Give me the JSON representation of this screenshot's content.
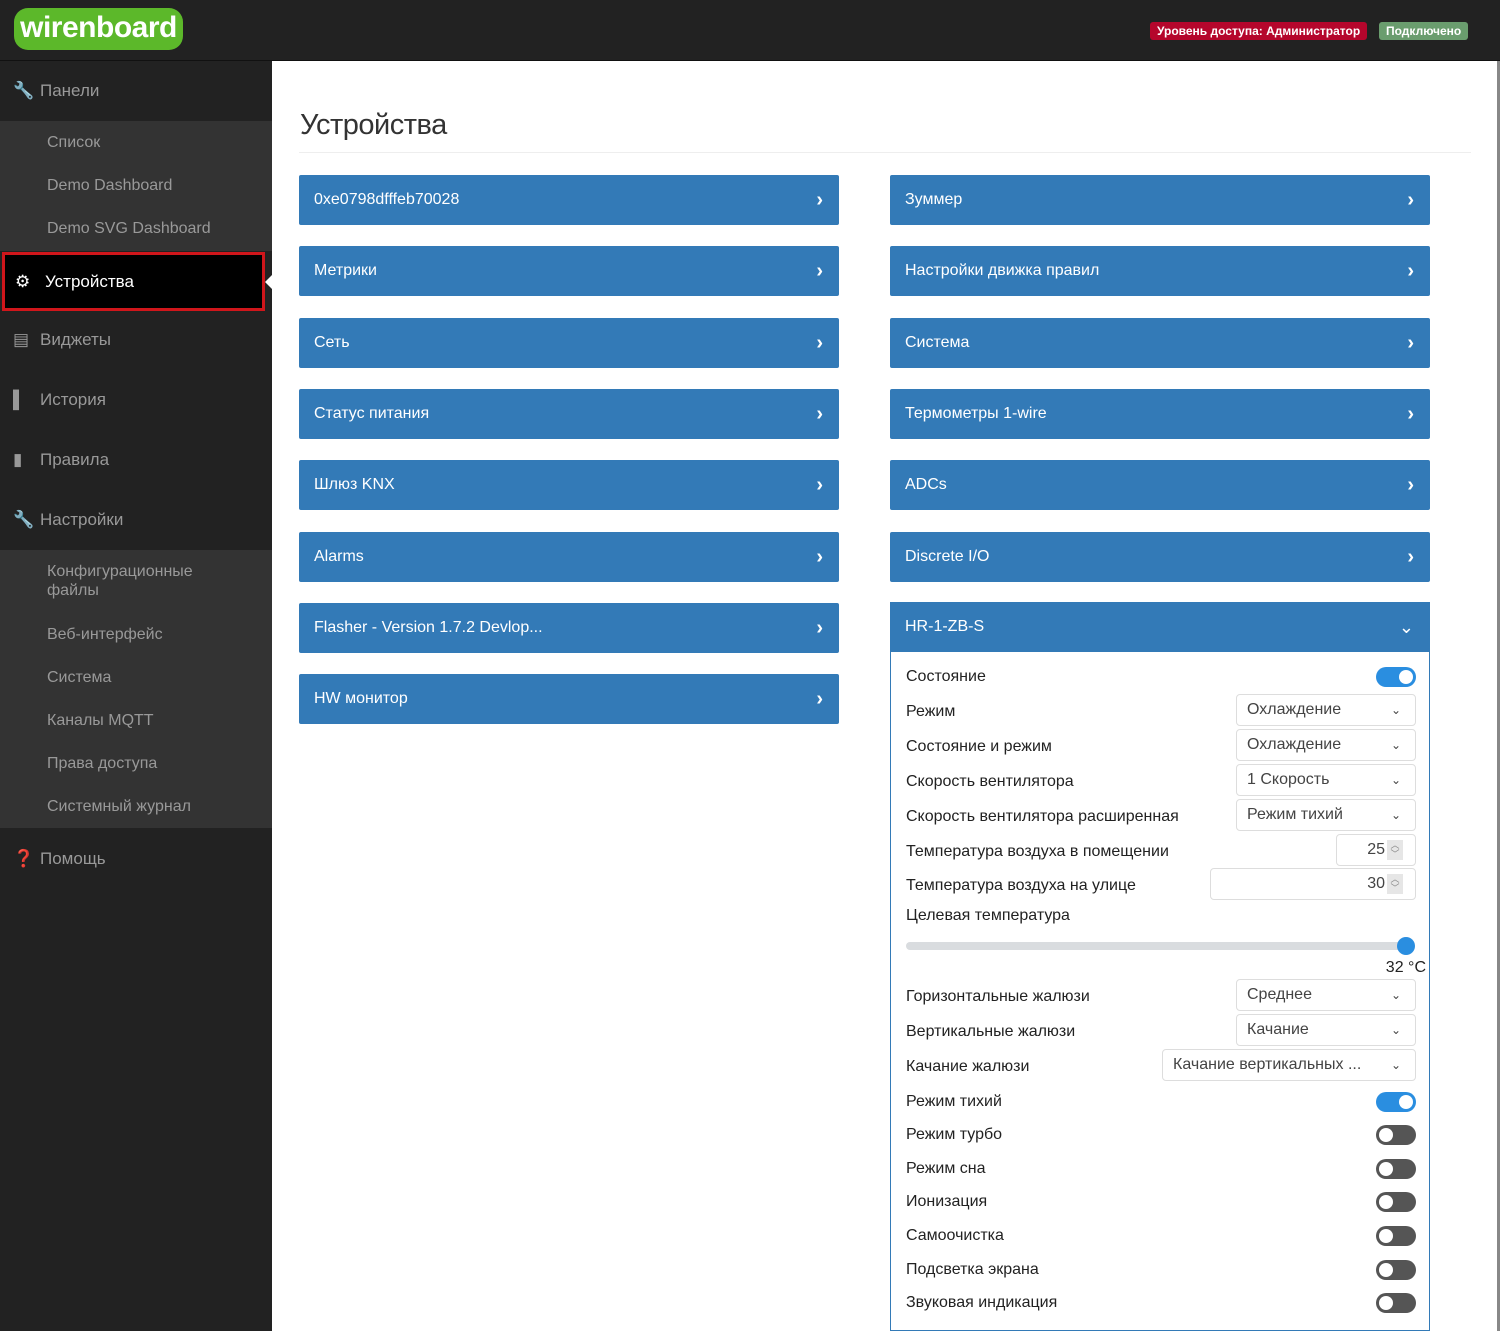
{
  "header": {
    "logo": "wirenboard",
    "access_badge": "Уровень доступа: Администратор",
    "connection_badge": "Подключено",
    "colors": {
      "logo": "#5cb82a",
      "access": "#b5062c",
      "connected": "#6a9d6e"
    }
  },
  "sidebar": {
    "panels": {
      "label": "Панели",
      "icon": "wrench-icon"
    },
    "panels_sub": [
      "Список",
      "Demo Dashboard",
      "Demo SVG Dashboard"
    ],
    "devices": {
      "label": "Устройства",
      "icon": "gear-icon"
    },
    "widgets": {
      "label": "Виджеты",
      "icon": "list-icon"
    },
    "history": {
      "label": "История",
      "icon": "bar-chart-icon"
    },
    "rules": {
      "label": "Правила",
      "icon": "file-icon"
    },
    "settings": {
      "label": "Настройки",
      "icon": "wrench-icon"
    },
    "settings_sub": [
      "Конфигурационные файлы",
      "Веб-интерфейс",
      "Система",
      "Каналы MQTT",
      "Права доступа",
      "Системный журнал"
    ],
    "help": {
      "label": "Помощь",
      "icon": "question-circle-icon"
    }
  },
  "main": {
    "title": "Устройства",
    "accent": "#337ab7",
    "left_devices": [
      "0xe0798dfffeb70028",
      "Метрики",
      "Сеть",
      "Статус питания",
      "Шлюз KNX",
      "Alarms",
      "Flasher - Version 1.7.2 Devlop...",
      "HW монитор"
    ],
    "right_devices": [
      "Зуммер",
      "Настройки движка правил",
      "Система",
      "Термометры 1-wire",
      "ADCs",
      "Discrete I/O"
    ],
    "expanded_device": {
      "name": "HR-1-ZB-S",
      "controls": [
        {
          "label": "Состояние",
          "type": "toggle",
          "value": true
        },
        {
          "label": "Режим",
          "type": "select",
          "value": "Охлаждение"
        },
        {
          "label": "Состояние и режим",
          "type": "select",
          "value": "Охлаждение"
        },
        {
          "label": "Скорость вентилятора",
          "type": "select",
          "value": "1 Скорость"
        },
        {
          "label": "Скорость вентилятора расширенная",
          "type": "select",
          "value": "Режим тихий"
        },
        {
          "label": "Температура воздуха в помещении",
          "type": "number",
          "value": "25"
        },
        {
          "label": "Температура воздуха на улице",
          "type": "number",
          "value": "30"
        },
        {
          "label": "Горизонтальные жалюзи",
          "type": "select",
          "value": "Среднее"
        },
        {
          "label": "Вертикальные жалюзи",
          "type": "select",
          "value": "Качание"
        },
        {
          "label": "Качание жалюзи",
          "type": "select",
          "value": "Качание вертикальных ..."
        },
        {
          "label": "Режим тихий",
          "type": "toggle",
          "value": true
        },
        {
          "label": "Режим турбо",
          "type": "toggle",
          "value": false
        },
        {
          "label": "Режим сна",
          "type": "toggle",
          "value": false
        },
        {
          "label": "Ионизация",
          "type": "toggle",
          "value": false
        },
        {
          "label": "Самоочистка",
          "type": "toggle",
          "value": false
        },
        {
          "label": "Подсветка экрана",
          "type": "toggle",
          "value": false
        },
        {
          "label": "Звуковая индикация",
          "type": "toggle",
          "value": false
        }
      ],
      "target_temp": {
        "label": "Целевая температура",
        "value": 32,
        "unit": "°C",
        "display": "32 °C",
        "fill_percent": 100
      }
    }
  }
}
